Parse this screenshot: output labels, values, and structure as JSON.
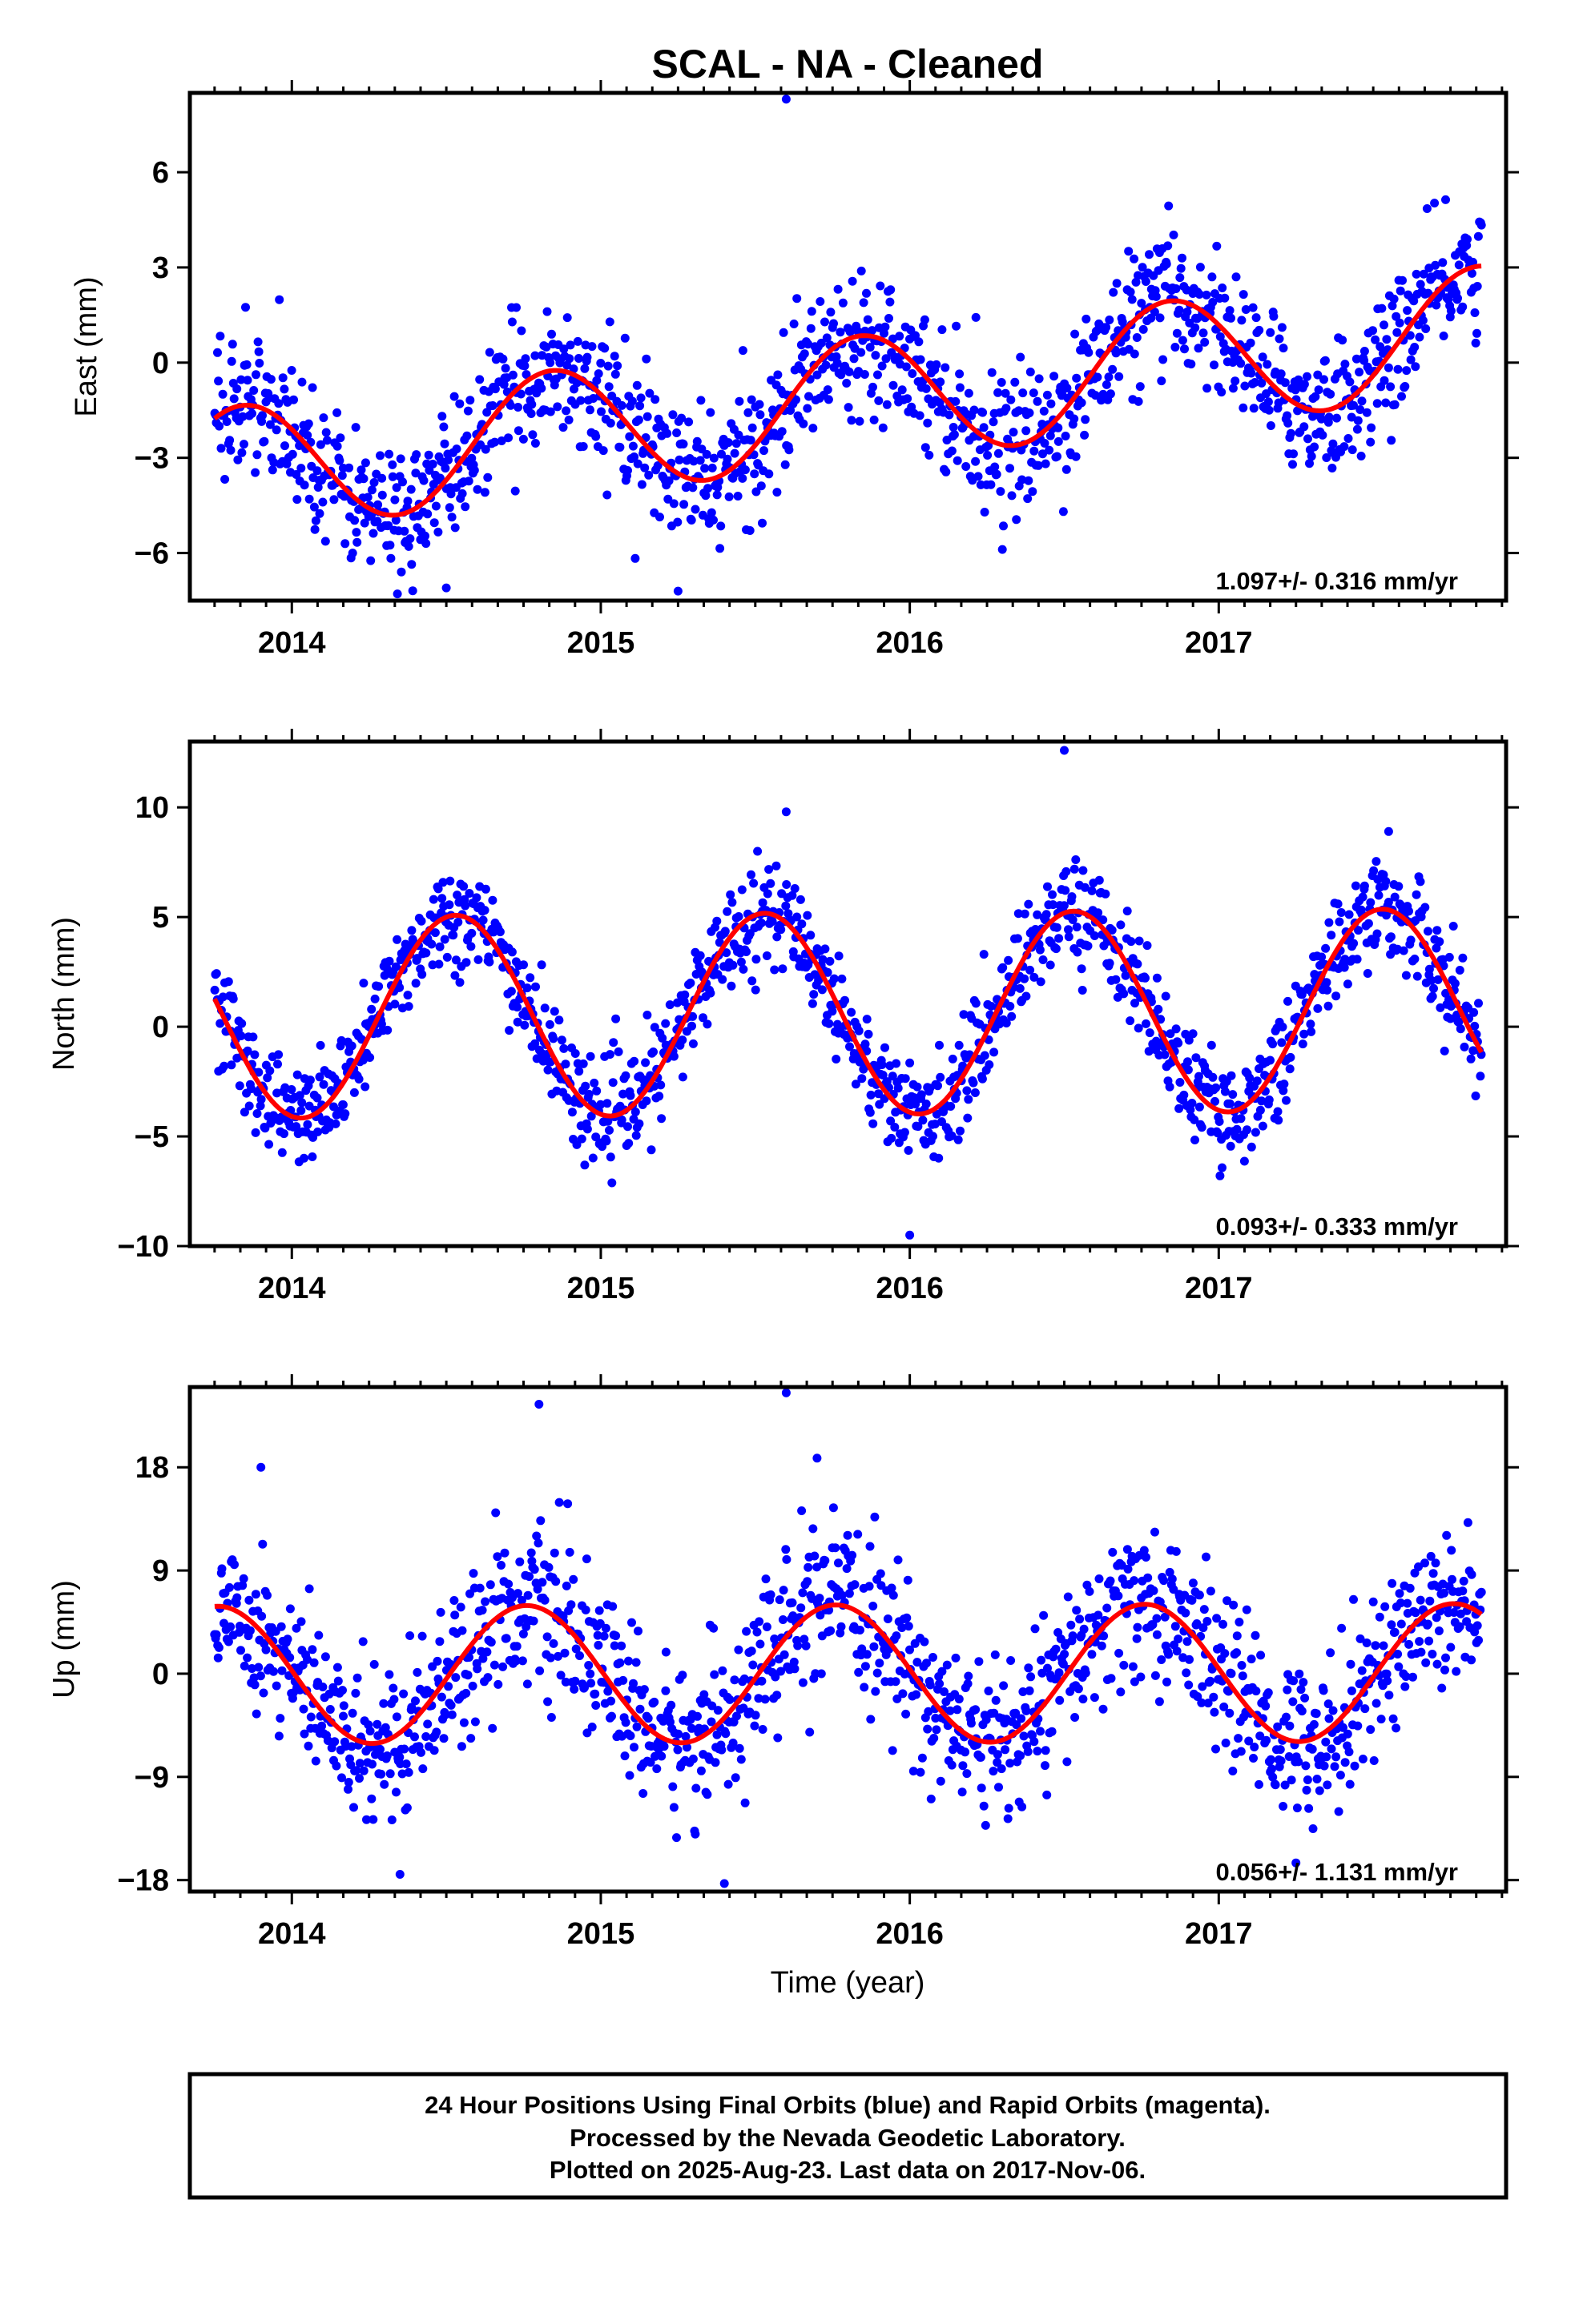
{
  "title": "SCAL  - NA - Cleaned",
  "colors": {
    "points": "#0000ff",
    "fit": "#ff0000",
    "axes": "#000000"
  },
  "chart_data": [
    {
      "type": "scatter",
      "ylabel": "East (mm)",
      "xlim": [
        2013.67,
        2017.93
      ],
      "ylim": [
        -7.5,
        8.5
      ],
      "x_ticks": [
        2014,
        2015,
        2016,
        2017
      ],
      "y_ticks": [
        -6,
        -3,
        0,
        3,
        6
      ],
      "y_tick_labels": [
        "−6",
        "−3",
        "0",
        "3",
        "6"
      ],
      "rate_label": "1.097+/- 0.316 mm/yr",
      "series": [
        {
          "type": "scatter",
          "x_range": [
            2013.75,
            2017.85
          ],
          "trend": -1.2,
          "rate": 1.097,
          "amplitude": 2.0,
          "peak": 0.84,
          "noise": 1.05
        },
        {
          "type": "line",
          "x_range": [
            2013.75,
            2017.85
          ],
          "trend": -1.2,
          "rate": 1.097,
          "amplitude": 2.0,
          "peak": 0.84
        }
      ],
      "outliers": [
        [
          2015.6,
          8.3
        ],
        [
          2015.25,
          -7.2
        ],
        [
          2014.5,
          -7.1
        ]
      ]
    },
    {
      "type": "scatter",
      "ylabel": "North (mm)",
      "xlim": [
        2013.67,
        2017.93
      ],
      "ylim": [
        -10,
        13
      ],
      "x_ticks": [
        2014,
        2015,
        2016,
        2017
      ],
      "y_ticks": [
        -10,
        -5,
        0,
        5,
        10
      ],
      "y_tick_labels": [
        "−10",
        "−5",
        "0",
        "5",
        "10"
      ],
      "rate_label": "0.093+/- 0.333 mm/yr",
      "series": [
        {
          "type": "scatter",
          "x_range": [
            2013.75,
            2017.85
          ],
          "trend": 0.6,
          "rate": 0.093,
          "amplitude": 4.6,
          "peak": 0.53,
          "noise": 1.15
        },
        {
          "type": "line",
          "x_range": [
            2013.75,
            2017.85
          ],
          "trend": 0.6,
          "rate": 0.093,
          "amplitude": 4.6,
          "peak": 0.53
        }
      ],
      "outliers": [
        [
          2016.5,
          12.6
        ],
        [
          2015.6,
          9.8
        ],
        [
          2016.0,
          -9.5
        ],
        [
          2017.55,
          8.9
        ]
      ]
    },
    {
      "type": "scatter",
      "ylabel": "Up (mm)",
      "xlim": [
        2013.67,
        2017.93
      ],
      "ylim": [
        -19,
        25
      ],
      "x_ticks": [
        2014,
        2015,
        2016,
        2017
      ],
      "y_ticks": [
        -18,
        -9,
        0,
        9,
        18
      ],
      "y_tick_labels": [
        "−18",
        "−9",
        "0",
        "9",
        "18"
      ],
      "xlabel": "Time (year)",
      "rate_label": "0.056+/- 1.131 mm/yr",
      "series": [
        {
          "type": "scatter",
          "x_range": [
            2013.75,
            2017.85
          ],
          "trend": 0.0,
          "rate": 0.056,
          "amplitude": 6.0,
          "peak": 0.76,
          "noise": 3.4
        },
        {
          "type": "line",
          "x_range": [
            2013.75,
            2017.85
          ],
          "trend": 0.0,
          "rate": 0.056,
          "amplitude": 6.0,
          "peak": 0.76
        }
      ],
      "outliers": [
        [
          2014.8,
          23.5
        ],
        [
          2015.6,
          24.5
        ],
        [
          2015.7,
          18.8
        ],
        [
          2013.9,
          18
        ],
        [
          2014.35,
          -17.5
        ],
        [
          2015.4,
          -18.3
        ],
        [
          2017.25,
          -16.5
        ]
      ]
    }
  ],
  "footer": {
    "line1": "24 Hour Positions Using Final Orbits (blue) and Rapid Orbits (magenta).",
    "line2": "Processed by the Nevada Geodetic Laboratory.",
    "line3": "Plotted on 2025-Aug-23. Last data on 2017-Nov-06."
  }
}
